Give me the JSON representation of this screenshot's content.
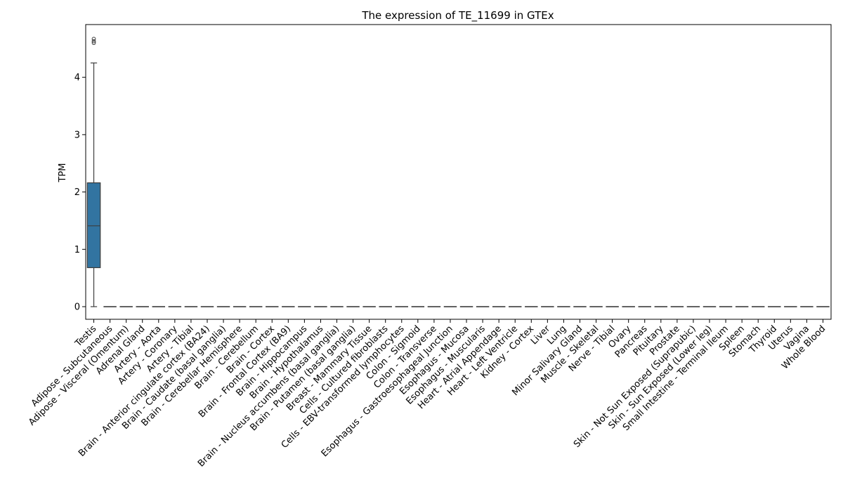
{
  "chart_data": {
    "type": "box",
    "title": "The expression of TE_11699 in GTEx",
    "xlabel": "",
    "ylabel": "TPM",
    "ylim": [
      -0.22,
      4.92
    ],
    "yticks": [
      0,
      1,
      2,
      3,
      4
    ],
    "grid": false,
    "box_color": "#3274a1",
    "categories": [
      "Testis",
      "Adipose - Subcutaneous",
      "Adipose - Visceral (Omentum)",
      "Adrenal Gland",
      "Artery - Aorta",
      "Artery - Coronary",
      "Artery - Tibial",
      "Brain - Anterior cingulate cortex (BA24)",
      "Brain - Caudate (basal ganglia)",
      "Brain - Cerebellar Hemisphere",
      "Brain - Cerebellum",
      "Brain - Cortex",
      "Brain - Frontal Cortex (BA9)",
      "Brain - Hippocampus",
      "Brain - Hypothalamus",
      "Brain - Nucleus accumbens (basal ganglia)",
      "Brain - Putamen (basal ganglia)",
      "Breast - Mammary Tissue",
      "Cells - Cultured fibroblasts",
      "Cells - EBV-transformed lymphocytes",
      "Colon - Sigmoid",
      "Colon - Transverse",
      "Esophagus - Gastroesophageal Junction",
      "Esophagus - Mucosa",
      "Esophagus - Muscularis",
      "Heart - Atrial Appendage",
      "Heart - Left Ventricle",
      "Kidney - Cortex",
      "Liver",
      "Lung",
      "Minor Salivary Gland",
      "Muscle - Skeletal",
      "Nerve - Tibial",
      "Ovary",
      "Pancreas",
      "Pituitary",
      "Prostate",
      "Skin - Not Sun Exposed (Suprapubic)",
      "Skin - Sun Exposed (Lower leg)",
      "Small Intestine - Terminal Ileum",
      "Spleen",
      "Stomach",
      "Thyroid",
      "Uterus",
      "Vagina",
      "Whole Blood"
    ],
    "testis_box": {
      "whisker_low": 0.0,
      "q1": 0.68,
      "median": 1.41,
      "q3": 2.16,
      "whisker_high": 4.25,
      "outliers": [
        4.6,
        4.63,
        4.67
      ]
    },
    "other_tissues_value": 0.0
  }
}
